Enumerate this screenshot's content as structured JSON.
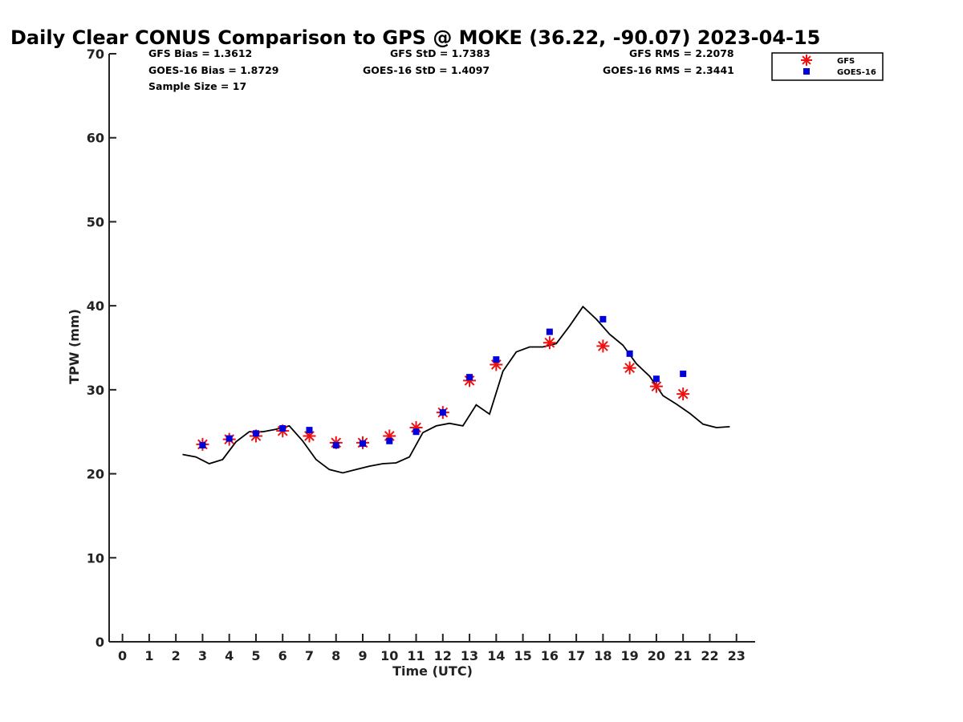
{
  "chart_data": {
    "type": "scatter",
    "title": "Daily Clear CONUS Comparison to GPS @ MOKE (36.22, -90.07) 2023-04-15",
    "xlabel": "Time (UTC)",
    "ylabel": "TPW (mm)",
    "xlim": [
      -0.5,
      23.7
    ],
    "ylim": [
      0,
      70
    ],
    "x_ticks": [
      "0",
      "1",
      "2",
      "3",
      "4",
      "5",
      "6",
      "7",
      "8",
      "9",
      "10",
      "11",
      "12",
      "13",
      "14",
      "15",
      "16",
      "17",
      "18",
      "19",
      "20",
      "21",
      "22",
      "23"
    ],
    "y_ticks": [
      "0",
      "10",
      "20",
      "30",
      "40",
      "50",
      "60",
      "70"
    ],
    "grid": false,
    "legend_position": "top-right",
    "stats": {
      "gfs_bias": "GFS Bias = 1.3612",
      "goes_bias": "GOES-16 Bias = 1.8729",
      "sample_size": "Sample Size = 17",
      "gfs_std": "GFS StD = 1.7383",
      "goes_std": "GOES-16 StD = 1.4097",
      "gfs_rms": "GFS RMS = 2.2078",
      "goes_rms": "GOES-16 RMS = 2.3441"
    },
    "series": [
      {
        "kind": "line",
        "color": "#000000",
        "x": [
          2.25,
          2.75,
          3.25,
          3.75,
          4.25,
          4.75,
          5.25,
          5.75,
          6.25,
          6.75,
          7.25,
          7.75,
          8.25,
          8.75,
          9.25,
          9.75,
          10.25,
          10.75,
          11.25,
          11.75,
          12.25,
          12.75,
          13.25,
          13.75,
          14.25,
          14.75,
          15.25,
          15.75,
          16.25,
          16.75,
          17.25,
          17.75,
          18.25,
          18.75,
          19.25,
          19.75,
          20.25,
          20.75,
          21.25,
          21.75,
          22.25,
          22.75
        ],
        "y": [
          22.3,
          22.0,
          21.2,
          21.7,
          23.8,
          25.0,
          25.0,
          25.3,
          25.7,
          23.9,
          21.7,
          20.5,
          20.1,
          20.5,
          20.9,
          21.2,
          21.3,
          22.0,
          24.9,
          25.7,
          26.0,
          25.7,
          28.2,
          27.1,
          32.2,
          34.5,
          35.1,
          35.1,
          35.5,
          37.6,
          39.9,
          38.4,
          36.6,
          35.3,
          33.1,
          31.6,
          29.3,
          28.3,
          27.2,
          25.9,
          25.5,
          25.6
        ]
      },
      {
        "name": "GFS",
        "kind": "scatter",
        "marker": "asterisk",
        "color": "#ee1111",
        "x": [
          3,
          4,
          5,
          6,
          7,
          8,
          9,
          10,
          11,
          12,
          13,
          14,
          16,
          18,
          19,
          20,
          21
        ],
        "y": [
          23.5,
          24.1,
          24.5,
          25.1,
          24.5,
          23.7,
          23.7,
          24.5,
          25.5,
          27.3,
          31.1,
          33.0,
          35.6,
          35.2,
          32.6,
          30.4,
          29.5
        ]
      },
      {
        "name": "GOES-16",
        "kind": "scatter",
        "marker": "square",
        "color": "#0000dd",
        "x": [
          3,
          4,
          5,
          6,
          7,
          8,
          9,
          10,
          11,
          12,
          13,
          14,
          16,
          18,
          19,
          20,
          21
        ],
        "y": [
          23.4,
          24.2,
          24.8,
          25.4,
          25.2,
          23.4,
          23.6,
          23.9,
          25.0,
          27.3,
          31.5,
          33.6,
          36.9,
          38.4,
          34.3,
          31.3,
          31.9
        ]
      }
    ]
  }
}
